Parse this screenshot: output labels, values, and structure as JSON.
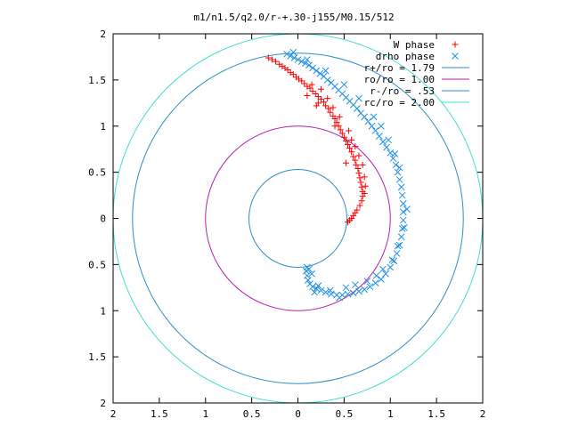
{
  "chart_data": {
    "type": "scatter",
    "title": "m1/n1.5/q2.0/r-+.30-j155/M0.15/512",
    "xlabel": "",
    "ylabel": "",
    "xlim": [
      -2,
      2
    ],
    "ylim": [
      -2,
      2
    ],
    "x_ticks": [
      -2,
      -1.5,
      -1,
      -0.5,
      0,
      0.5,
      1,
      1.5,
      2
    ],
    "y_ticks": [
      -2,
      -1.5,
      -1,
      -0.5,
      0,
      0.5,
      1,
      1.5,
      2
    ],
    "x_tick_labels": [
      "2",
      "1.5",
      "1",
      "0.5",
      "0",
      "0.5",
      "1",
      "1.5",
      "2"
    ],
    "y_tick_labels": [
      "2",
      "1.5",
      "1",
      "0.5",
      "0",
      "0.5",
      "1",
      "1.5",
      "2"
    ],
    "grid": false,
    "legend_position": "top-right",
    "series": [
      {
        "name": "W phase",
        "marker": "plus",
        "color": "#ff0000",
        "points": [
          [
            -0.32,
            1.74
          ],
          [
            -0.28,
            1.72
          ],
          [
            -0.24,
            1.7
          ],
          [
            -0.2,
            1.67
          ],
          [
            -0.17,
            1.65
          ],
          [
            -0.14,
            1.63
          ],
          [
            -0.11,
            1.61
          ],
          [
            -0.08,
            1.58
          ],
          [
            -0.05,
            1.56
          ],
          [
            -0.02,
            1.53
          ],
          [
            0.01,
            1.51
          ],
          [
            0.04,
            1.49
          ],
          [
            0.07,
            1.46
          ],
          [
            0.1,
            1.43
          ],
          [
            0.13,
            1.41
          ],
          [
            0.16,
            1.38
          ],
          [
            0.19,
            1.35
          ],
          [
            0.22,
            1.32
          ],
          [
            0.25,
            1.29
          ],
          [
            0.28,
            1.26
          ],
          [
            0.3,
            1.22
          ],
          [
            0.33,
            1.19
          ],
          [
            0.35,
            1.15
          ],
          [
            0.38,
            1.11
          ],
          [
            0.4,
            1.08
          ],
          [
            0.42,
            1.04
          ],
          [
            0.44,
            1.0
          ],
          [
            0.46,
            0.96
          ],
          [
            0.48,
            0.92
          ],
          [
            0.5,
            0.88
          ],
          [
            0.52,
            0.84
          ],
          [
            0.54,
            0.8
          ],
          [
            0.56,
            0.76
          ],
          [
            0.58,
            0.72
          ],
          [
            0.6,
            0.67
          ],
          [
            0.62,
            0.63
          ],
          [
            0.63,
            0.58
          ],
          [
            0.65,
            0.54
          ],
          [
            0.66,
            0.49
          ],
          [
            0.67,
            0.44
          ],
          [
            0.68,
            0.39
          ],
          [
            0.69,
            0.34
          ],
          [
            0.7,
            0.29
          ],
          [
            0.7,
            0.24
          ],
          [
            0.69,
            0.19
          ],
          [
            0.67,
            0.14
          ],
          [
            0.64,
            0.09
          ],
          [
            0.62,
            0.06
          ],
          [
            0.6,
            0.03
          ],
          [
            0.58,
            0.0
          ],
          [
            0.56,
            -0.02
          ],
          [
            0.54,
            -0.04
          ],
          [
            0.15,
            1.45
          ],
          [
            0.25,
            1.4
          ],
          [
            0.32,
            1.3
          ],
          [
            0.22,
            1.25
          ],
          [
            0.38,
            1.2
          ],
          [
            0.45,
            1.1
          ],
          [
            0.55,
            0.95
          ],
          [
            0.58,
            0.85
          ],
          [
            0.62,
            0.78
          ],
          [
            0.66,
            0.68
          ],
          [
            0.7,
            0.58
          ],
          [
            0.72,
            0.45
          ],
          [
            0.73,
            0.35
          ],
          [
            0.72,
            0.27
          ],
          [
            0.1,
            1.33
          ],
          [
            0.2,
            1.22
          ],
          [
            0.4,
            1.0
          ],
          [
            0.52,
            0.6
          ]
        ]
      },
      {
        "name": "drho phase",
        "marker": "cross",
        "color": "#1e90e6",
        "points": [
          [
            -0.12,
            1.78
          ],
          [
            -0.08,
            1.76
          ],
          [
            -0.04,
            1.74
          ],
          [
            0.0,
            1.72
          ],
          [
            0.04,
            1.7
          ],
          [
            0.08,
            1.68
          ],
          [
            0.12,
            1.66
          ],
          [
            0.16,
            1.63
          ],
          [
            0.2,
            1.6
          ],
          [
            0.24,
            1.57
          ],
          [
            0.28,
            1.54
          ],
          [
            0.32,
            1.5
          ],
          [
            0.36,
            1.47
          ],
          [
            0.4,
            1.43
          ],
          [
            0.44,
            1.39
          ],
          [
            0.48,
            1.35
          ],
          [
            0.52,
            1.31
          ],
          [
            0.56,
            1.27
          ],
          [
            0.6,
            1.23
          ],
          [
            0.64,
            1.19
          ],
          [
            0.68,
            1.14
          ],
          [
            0.72,
            1.1
          ],
          [
            0.76,
            1.05
          ],
          [
            0.8,
            1.0
          ],
          [
            0.84,
            0.95
          ],
          [
            0.88,
            0.89
          ],
          [
            0.92,
            0.83
          ],
          [
            0.96,
            0.77
          ],
          [
            1.0,
            0.71
          ],
          [
            1.03,
            0.65
          ],
          [
            1.06,
            0.58
          ],
          [
            1.08,
            0.5
          ],
          [
            1.1,
            0.42
          ],
          [
            1.12,
            0.34
          ],
          [
            1.13,
            0.25
          ],
          [
            1.14,
            0.16
          ],
          [
            1.14,
            0.07
          ],
          [
            1.14,
            -0.02
          ],
          [
            1.13,
            -0.11
          ],
          [
            1.12,
            -0.2
          ],
          [
            1.1,
            -0.29
          ],
          [
            1.07,
            -0.38
          ],
          [
            1.04,
            -0.46
          ],
          [
            1.0,
            -0.53
          ],
          [
            0.95,
            -0.6
          ],
          [
            0.9,
            -0.66
          ],
          [
            0.84,
            -0.7
          ],
          [
            0.78,
            -0.74
          ],
          [
            0.72,
            -0.77
          ],
          [
            0.66,
            -0.79
          ],
          [
            0.6,
            -0.81
          ],
          [
            0.54,
            -0.82
          ],
          [
            0.48,
            -0.83
          ],
          [
            0.42,
            -0.83
          ],
          [
            0.36,
            -0.82
          ],
          [
            0.3,
            -0.8
          ],
          [
            0.25,
            -0.78
          ],
          [
            0.2,
            -0.76
          ],
          [
            0.16,
            -0.74
          ],
          [
            0.13,
            -0.71
          ],
          [
            0.11,
            -0.67
          ],
          [
            0.1,
            -0.62
          ],
          [
            0.09,
            -0.57
          ],
          [
            0.1,
            -0.53
          ],
          [
            0.12,
            -0.55
          ],
          [
            0.15,
            -0.6
          ],
          [
            0.18,
            -0.8
          ],
          [
            0.22,
            -0.73
          ],
          [
            0.35,
            -0.78
          ],
          [
            0.45,
            -0.86
          ],
          [
            0.52,
            -0.75
          ],
          [
            0.62,
            -0.72
          ],
          [
            0.75,
            -0.68
          ],
          [
            0.85,
            -0.62
          ],
          [
            0.92,
            -0.55
          ],
          [
            1.02,
            -0.45
          ],
          [
            1.08,
            -0.3
          ],
          [
            1.15,
            -0.1
          ],
          [
            1.18,
            0.1
          ],
          [
            1.1,
            0.55
          ],
          [
            1.05,
            0.7
          ],
          [
            0.98,
            0.85
          ],
          [
            0.9,
            1.0
          ],
          [
            0.82,
            1.1
          ],
          [
            0.66,
            1.3
          ],
          [
            0.5,
            1.45
          ],
          [
            0.3,
            1.6
          ],
          [
            0.1,
            1.72
          ],
          [
            -0.05,
            1.8
          ]
        ]
      }
    ],
    "circles": [
      {
        "name": "r+/ro = 1.79",
        "radius": 1.79,
        "color": "#2c8fc9"
      },
      {
        "name": "ro/ro = 1.00",
        "radius": 1.0,
        "color": "#b41eb4"
      },
      {
        "name": "r-/ro = .53",
        "radius": 0.53,
        "color": "#2c8fc9"
      },
      {
        "name": "rc/ro = 2.00",
        "radius": 2.0,
        "color": "#40e0d0"
      }
    ]
  }
}
